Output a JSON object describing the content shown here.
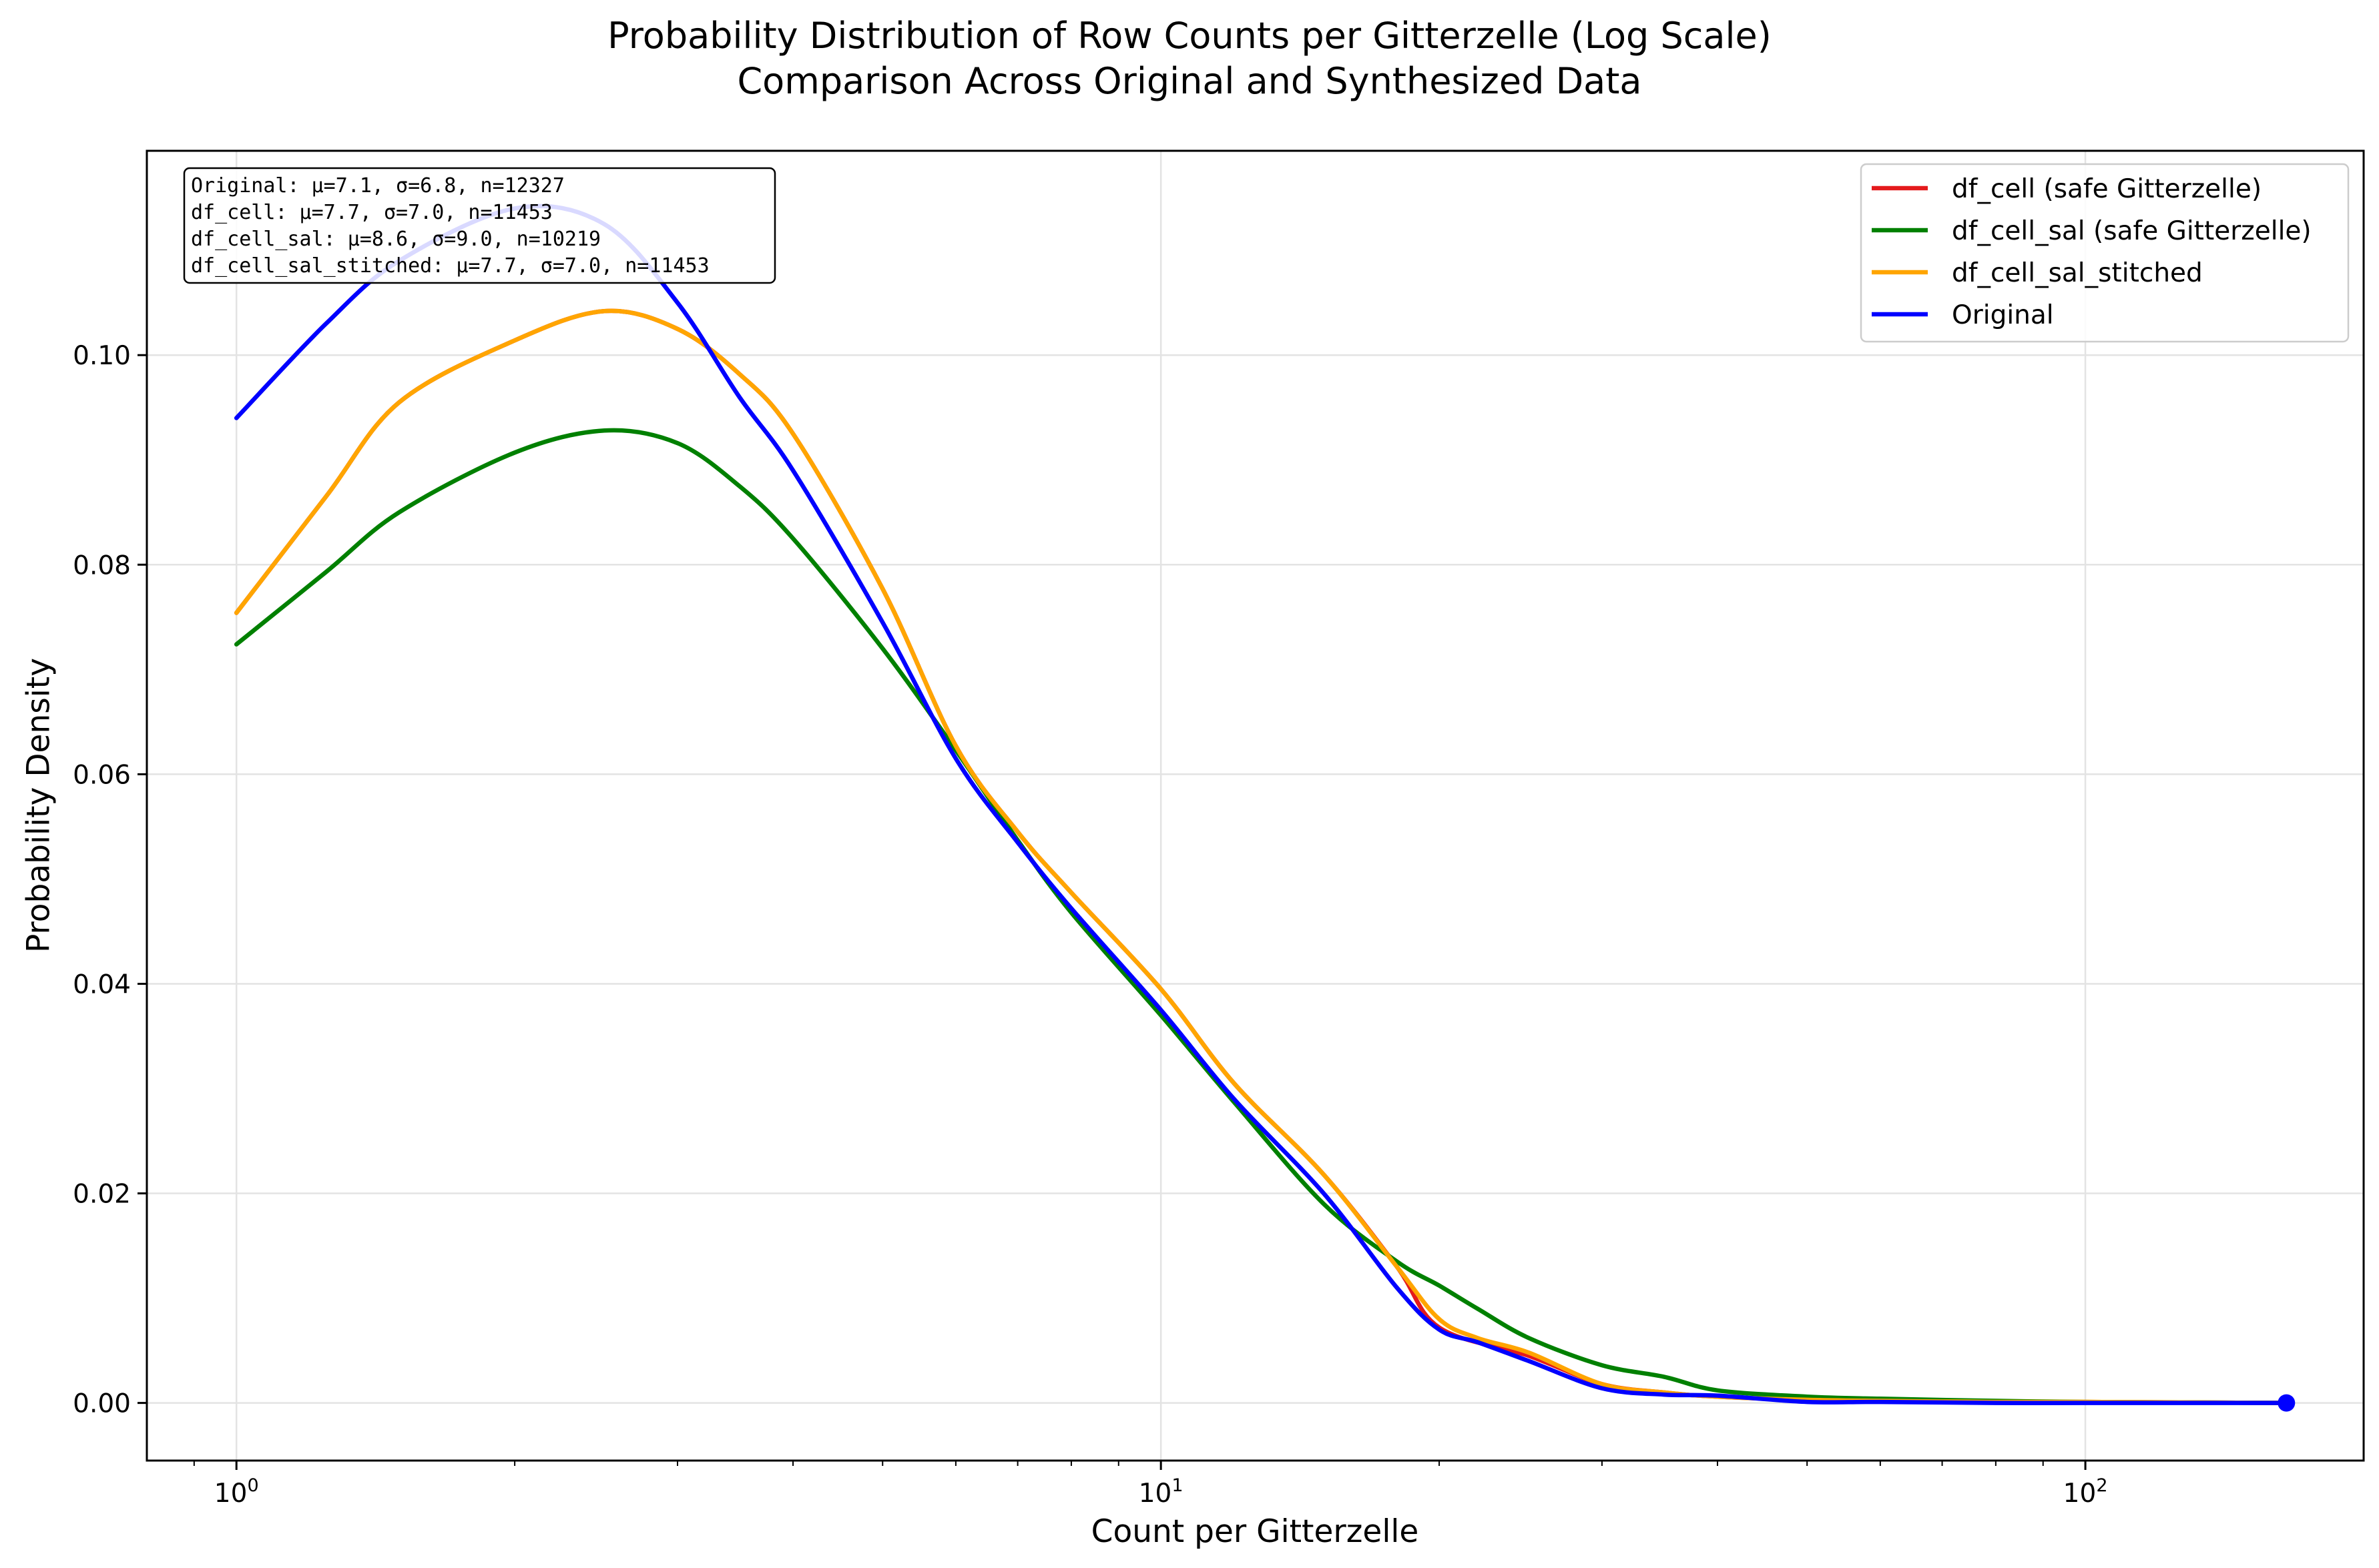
{
  "chart_data": {
    "type": "line",
    "title": "Probability Distribution of Row Counts per Gitterzelle (Log Scale)",
    "subtitle": "Comparison Across Original and Synthesized Data",
    "xlabel": "Count per Gitterzelle",
    "ylabel": "Probability Density",
    "xscale": "log",
    "xlim": [
      0.8,
      200
    ],
    "ylim": [
      -0.0055,
      0.1195
    ],
    "x_ticks": [
      {
        "value": 1,
        "base": "10",
        "exp": "0"
      },
      {
        "value": 10,
        "base": "10",
        "exp": "1"
      },
      {
        "value": 100,
        "base": "10",
        "exp": "2"
      }
    ],
    "y_ticks": [
      {
        "value": 0.0,
        "label": "0.00"
      },
      {
        "value": 0.02,
        "label": "0.02"
      },
      {
        "value": 0.04,
        "label": "0.04"
      },
      {
        "value": 0.06,
        "label": "0.06"
      },
      {
        "value": 0.08,
        "label": "0.08"
      },
      {
        "value": 0.1,
        "label": "0.10"
      }
    ],
    "grid": true,
    "legend_position": "top-right",
    "series": [
      {
        "name": "df_cell (safe Gitterzelle)",
        "color": "#e41a1c",
        "x": [
          1,
          1.25,
          1.5,
          2,
          2.5,
          3,
          3.5,
          4,
          5,
          6,
          7,
          8,
          10,
          12,
          15,
          18,
          20,
          25,
          30,
          35,
          40,
          50,
          60,
          80,
          100,
          165
        ],
        "y": [
          0.0754,
          0.0865,
          0.0955,
          0.1014,
          0.1042,
          0.1025,
          0.0982,
          0.0925,
          0.0777,
          0.0627,
          0.0545,
          0.0487,
          0.0395,
          0.0305,
          0.0218,
          0.013,
          0.0072,
          0.0045,
          0.0018,
          0.001,
          0.0006,
          0.0003,
          0.0002,
          0.0001,
          0.0001,
          0.0
        ]
      },
      {
        "name": "df_cell_sal (safe Gitterzelle)",
        "color": "#008000",
        "x": [
          1,
          1.25,
          1.5,
          2,
          2.5,
          3,
          3.5,
          4,
          5,
          6,
          7,
          8,
          10,
          12,
          15,
          18,
          20,
          22,
          25,
          30,
          35,
          40,
          50,
          60,
          80,
          100,
          165
        ],
        "y": [
          0.0724,
          0.0793,
          0.085,
          0.0907,
          0.0928,
          0.0916,
          0.0875,
          0.0825,
          0.072,
          0.0623,
          0.0537,
          0.0468,
          0.037,
          0.0287,
          0.019,
          0.0135,
          0.0112,
          0.009,
          0.0062,
          0.0036,
          0.0025,
          0.0012,
          0.0006,
          0.0004,
          0.0002,
          0.0001,
          0.0
        ]
      },
      {
        "name": "df_cell_sal_stitched",
        "color": "#ffa500",
        "x": [
          1,
          1.25,
          1.5,
          2,
          2.5,
          3,
          3.5,
          4,
          5,
          6,
          7,
          8,
          10,
          12,
          15,
          18,
          20,
          22,
          25,
          30,
          35,
          40,
          50,
          60,
          80,
          100,
          165
        ],
        "y": [
          0.0754,
          0.0865,
          0.0955,
          0.1014,
          0.1042,
          0.1025,
          0.0982,
          0.0925,
          0.0777,
          0.0627,
          0.0545,
          0.0487,
          0.0395,
          0.0305,
          0.0218,
          0.013,
          0.008,
          0.0062,
          0.0048,
          0.0018,
          0.001,
          0.0006,
          0.0003,
          0.0002,
          0.0001,
          0.0001,
          0.0
        ]
      },
      {
        "name": "Original",
        "color": "#0000ff",
        "x": [
          1,
          1.25,
          1.5,
          2,
          2.5,
          3,
          3.5,
          4,
          5,
          6,
          7,
          8,
          10,
          12,
          15,
          18,
          20,
          22,
          25,
          30,
          35,
          40,
          50,
          60,
          80,
          100,
          165
        ],
        "y": [
          0.094,
          0.103,
          0.109,
          0.114,
          0.1125,
          0.105,
          0.096,
          0.089,
          0.0745,
          0.0615,
          0.0535,
          0.0472,
          0.0375,
          0.029,
          0.02,
          0.011,
          0.007,
          0.0058,
          0.004,
          0.0014,
          0.0008,
          0.0007,
          0.0001,
          0.0001,
          0.0,
          0.0,
          0.0
        ]
      }
    ],
    "end_marker": {
      "x": 165,
      "y": 0.0,
      "color": "#0000ff"
    },
    "stats_box": [
      "Original: μ=7.1, σ=6.8, n=12327",
      "df_cell: μ=7.7, σ=7.0, n=11453",
      "df_cell_sal: μ=8.6, σ=9.0, n=10219",
      "df_cell_sal_stitched: μ=7.7, σ=7.0, n=11453"
    ]
  }
}
